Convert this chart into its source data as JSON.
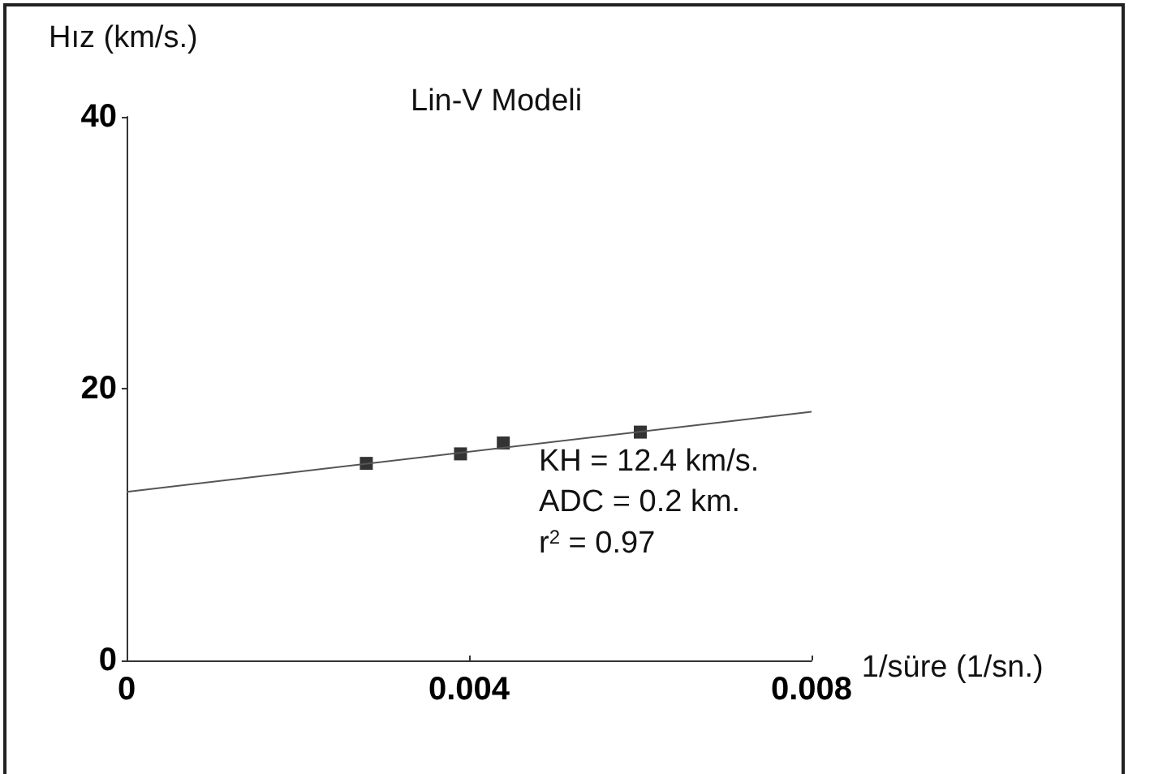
{
  "chart_data": {
    "type": "scatter",
    "title": "Lin-V Modeli",
    "xlabel": "1/süre (1/sn.)",
    "ylabel": "Hız (km/s.)",
    "x": [
      0.0028,
      0.0039,
      0.0044,
      0.006
    ],
    "series": [
      {
        "color": "#000000",
        "marker": "square",
        "values": [
          14.5,
          15.2,
          16.0,
          16.8
        ]
      },
      {
        "type": "line",
        "x": [
          0,
          0.008
        ],
        "values": [
          12.4,
          18.3
        ],
        "color": "#555555",
        "marker": "none",
        "line_style": "solid"
      }
    ],
    "xlim": [
      0,
      0.008
    ],
    "xticks": [
      0,
      0.004,
      0.008
    ],
    "ylim": [
      0,
      40
    ],
    "yticks": [
      0,
      20,
      40
    ],
    "grid": false,
    "annotations": [
      "KH = 12.4 km/s.",
      "ADC = 0.2 km.",
      "r$^{2}$ = 0.97"
    ]
  }
}
